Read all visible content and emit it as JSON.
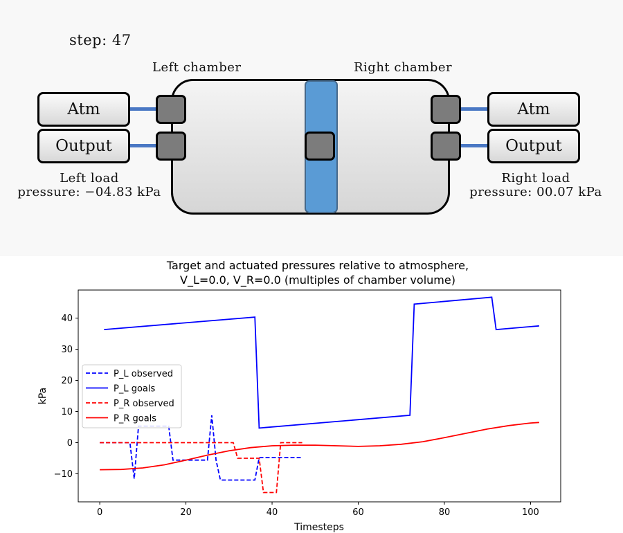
{
  "sim": {
    "step_label": "step: 47",
    "left_chamber_label": "Left chamber",
    "right_chamber_label": "Right chamber",
    "left_buttons": [
      "Atm",
      "Output"
    ],
    "right_buttons": [
      "Atm",
      "Output"
    ],
    "left_load_line1": "Left load",
    "left_load_line2": "pressure: −04.83 kPa",
    "right_load_line1": "Right load",
    "right_load_line2": "pressure:  00.07 kPa"
  },
  "chart_data": {
    "type": "line",
    "title_line1": "Target and actuated pressures relative to atmosphere,",
    "title_line2": "V_L=0.0,     V_R=0.0 (multiples of chamber volume)",
    "xlabel": "Timesteps",
    "ylabel": "kPa",
    "xlim": [
      -5,
      107
    ],
    "ylim": [
      -19,
      49
    ],
    "xticks": [
      0,
      20,
      40,
      60,
      80,
      100
    ],
    "yticks": [
      -10,
      0,
      10,
      20,
      30,
      40
    ],
    "grid": false,
    "legend_position": "center-left",
    "series": [
      {
        "name": "P_L observed",
        "color": "#0000ff",
        "dashed": true,
        "x": [
          0,
          1,
          2,
          3,
          4,
          5,
          6,
          7,
          8,
          9,
          10,
          11,
          12,
          13,
          14,
          15,
          16,
          17,
          18,
          19,
          20,
          21,
          22,
          23,
          24,
          25,
          26,
          27,
          28,
          29,
          30,
          31,
          32,
          33,
          34,
          35,
          36,
          37,
          38,
          39,
          40,
          41,
          42,
          43,
          44,
          45,
          46,
          47
        ],
        "y": [
          0,
          0,
          0,
          0,
          0,
          0,
          0,
          0,
          -11.6,
          5.3,
          5.3,
          5.3,
          5.3,
          5.3,
          5.3,
          5.3,
          5.3,
          -5.6,
          -5.6,
          -5.6,
          -5.6,
          -5.6,
          -5.6,
          -5.6,
          -5.6,
          -5.6,
          8.8,
          -5.6,
          -12,
          -12,
          -12,
          -12,
          -12,
          -12,
          -12,
          -12,
          -12,
          -4.8,
          -4.8,
          -4.8,
          -4.8,
          -4.8,
          -4.8,
          -4.8,
          -4.8,
          -4.8,
          -4.8,
          -4.8
        ]
      },
      {
        "name": "P_L goals",
        "color": "#0000ff",
        "dashed": false,
        "x": [
          1,
          36,
          37,
          72,
          73,
          91,
          92,
          102
        ],
        "y": [
          36.3,
          40.3,
          4.7,
          8.8,
          44.5,
          46.7,
          36.3,
          37.5
        ]
      },
      {
        "name": "P_R observed",
        "color": "#ff0000",
        "dashed": true,
        "x": [
          0,
          1,
          2,
          3,
          4,
          5,
          6,
          7,
          8,
          9,
          10,
          11,
          12,
          13,
          14,
          15,
          16,
          17,
          18,
          19,
          20,
          21,
          22,
          23,
          24,
          25,
          26,
          27,
          28,
          29,
          30,
          31,
          32,
          33,
          34,
          35,
          36,
          37,
          38,
          39,
          40,
          41,
          42,
          43,
          44,
          45,
          46,
          47
        ],
        "y": [
          0,
          0,
          0,
          0,
          0,
          0,
          0,
          0,
          0,
          0,
          0,
          0,
          0,
          0,
          0,
          0,
          0,
          0,
          0,
          0,
          0,
          0,
          0,
          0,
          0,
          0,
          0,
          0,
          0,
          0,
          0,
          0,
          -5,
          -5,
          -5,
          -5,
          -5,
          -5,
          -16,
          -16,
          -16,
          -16,
          0,
          0,
          0,
          0,
          0,
          0
        ]
      },
      {
        "name": "P_R goals",
        "color": "#ff0000",
        "dashed": false,
        "x": [
          0,
          5,
          10,
          15,
          20,
          25,
          30,
          35,
          40,
          45,
          50,
          55,
          60,
          65,
          70,
          75,
          80,
          85,
          90,
          95,
          100,
          102
        ],
        "y": [
          -8.7,
          -8.6,
          -8.1,
          -7.1,
          -5.6,
          -4,
          -2.6,
          -1.6,
          -1,
          -0.8,
          -0.8,
          -1,
          -1.2,
          -1,
          -0.5,
          0.3,
          1.6,
          3,
          4.4,
          5.5,
          6.3,
          6.5
        ]
      }
    ]
  }
}
